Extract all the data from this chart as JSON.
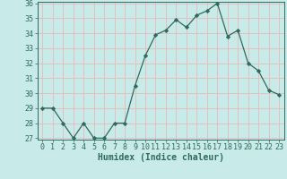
{
  "x": [
    0,
    1,
    2,
    3,
    4,
    5,
    6,
    7,
    8,
    9,
    10,
    11,
    12,
    13,
    14,
    15,
    16,
    17,
    18,
    19,
    20,
    21,
    22,
    23
  ],
  "y": [
    29.0,
    29.0,
    28.0,
    27.0,
    28.0,
    27.0,
    27.0,
    28.0,
    28.0,
    30.5,
    32.5,
    33.9,
    34.2,
    34.9,
    34.4,
    35.2,
    35.5,
    36.0,
    33.8,
    34.2,
    32.0,
    31.5,
    30.2,
    29.9
  ],
  "line_color": "#2e6b5e",
  "marker": "D",
  "marker_size": 2.2,
  "bg_color": "#c8eae8",
  "grid_color": "#e8b8b8",
  "xlabel": "Humidex (Indice chaleur)",
  "ylim": [
    27,
    36
  ],
  "xlim": [
    -0.5,
    23.5
  ],
  "yticks": [
    27,
    28,
    29,
    30,
    31,
    32,
    33,
    34,
    35,
    36
  ],
  "xticks": [
    0,
    1,
    2,
    3,
    4,
    5,
    6,
    7,
    8,
    9,
    10,
    11,
    12,
    13,
    14,
    15,
    16,
    17,
    18,
    19,
    20,
    21,
    22,
    23
  ],
  "xlabel_fontsize": 7.0,
  "tick_fontsize": 6.0,
  "tick_color": "#2e6b5e",
  "spine_color": "#2e6b5e"
}
